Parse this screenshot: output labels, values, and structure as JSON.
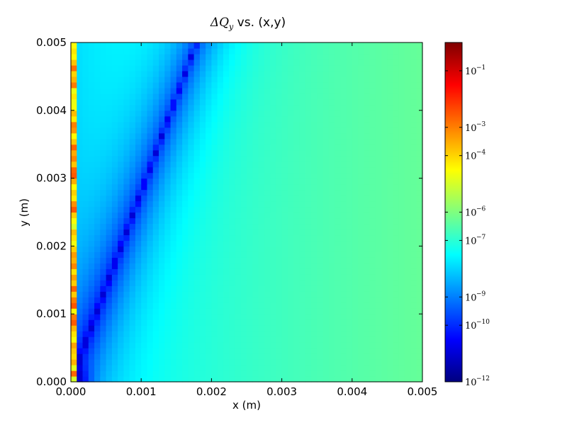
{
  "chart_data": {
    "type": "heatmap",
    "title": {
      "symbol_delta": "Δ",
      "symbol_q": "Q",
      "subscript": "y",
      "text": " vs. (x,y)"
    },
    "xlabel": "x (m)",
    "ylabel": "y (m)",
    "xlim": [
      0.0,
      0.005
    ],
    "ylim": [
      0.0,
      0.005
    ],
    "x_ticks": [
      "0.000",
      "0.001",
      "0.002",
      "0.003",
      "0.004",
      "0.005"
    ],
    "y_ticks": [
      "0.000",
      "0.001",
      "0.002",
      "0.003",
      "0.004",
      "0.005"
    ],
    "grid": false,
    "colormap": "jet",
    "color_scale": "log",
    "colorbar": {
      "min": 1e-12,
      "max": 1,
      "ticks": [
        {
          "base": "10",
          "exp": "−12"
        },
        {
          "base": "10",
          "exp": "−10"
        },
        {
          "base": "10",
          "exp": "−9"
        },
        {
          "base": "10",
          "exp": "−7"
        },
        {
          "base": "10",
          "exp": "−6"
        },
        {
          "base": "10",
          "exp": "−4"
        },
        {
          "base": "10",
          "exp": "−3"
        },
        {
          "base": "10",
          "exp": "−1"
        }
      ]
    },
    "grid_size": [
      60,
      60
    ],
    "features": {
      "left_edge_column_log10_range": [
        -5.0,
        -2.5
      ],
      "background_log10_near_left": -8.0,
      "background_log10_far_right": -6.3,
      "min_line_slope_dy_dx": 2.8,
      "min_line_log10": -11.0
    }
  },
  "colors": {
    "jet_stops": [
      "#00007f",
      "#0000ff",
      "#007fff",
      "#00ffff",
      "#7fff7f",
      "#ffff00",
      "#ff7f00",
      "#ff0000",
      "#7f0000"
    ]
  }
}
